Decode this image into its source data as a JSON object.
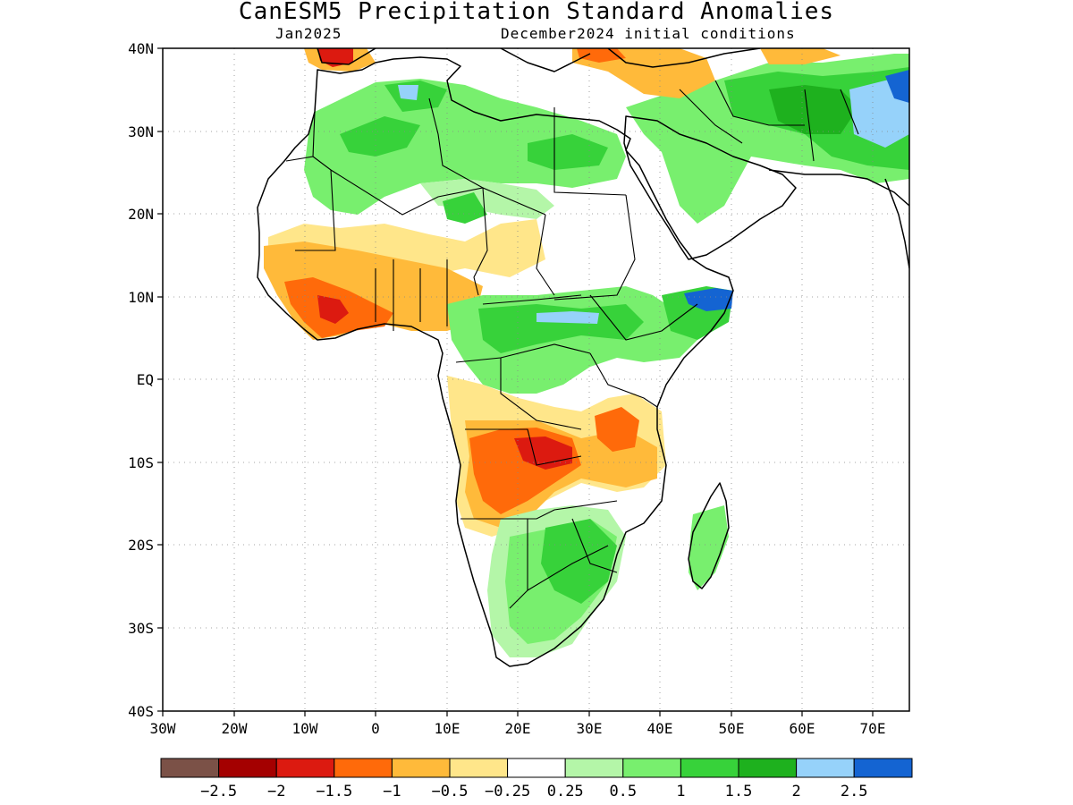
{
  "title": "CanESM5 Precipitation Standard Anomalies",
  "subtitle_left": "Jan2025",
  "subtitle_right": "December2024 initial conditions",
  "lat_labels": [
    "40N",
    "30N",
    "20N",
    "10N",
    "EQ",
    "10S",
    "20S",
    "30S",
    "40S"
  ],
  "lon_labels": [
    "30W",
    "20W",
    "10W",
    "0",
    "10E",
    "20E",
    "30E",
    "40E",
    "50E",
    "60E",
    "70E"
  ],
  "colorbar": {
    "colors": [
      "#7b5147",
      "#a40000",
      "#dc1a10",
      "#ff6a0a",
      "#ffba3a",
      "#ffe68a",
      "#ffffff",
      "#b4f6a8",
      "#78ef6e",
      "#37d23a",
      "#1eb11e",
      "#96d2fa",
      "#1464d2"
    ],
    "labels": [
      "−2.5",
      "−2",
      "−1.5",
      "−1",
      "−0.5",
      "−0.25",
      "0.25",
      "0.5",
      "1",
      "1.5",
      "2",
      "2.5"
    ]
  },
  "chart_data": {
    "type": "map",
    "variable": "Precipitation Standard Anomalies",
    "model": "CanESM5",
    "lon_range": [
      -30,
      75
    ],
    "lat_range": [
      -40,
      40
    ],
    "levels": [
      -2.5,
      -2,
      -1.5,
      -1,
      -0.5,
      -0.25,
      0.25,
      0.5,
      1,
      1.5,
      2,
      2.5
    ]
  }
}
